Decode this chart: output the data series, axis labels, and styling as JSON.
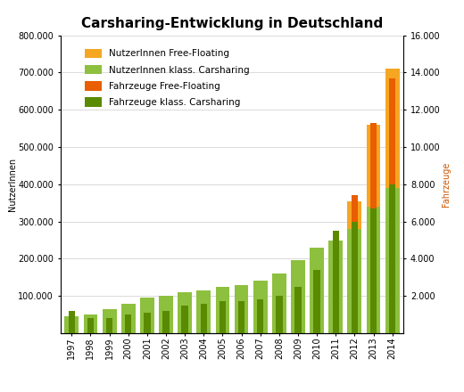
{
  "title": "Carsharing-Entwicklung in Deutschland",
  "years": [
    1997,
    1998,
    1999,
    2000,
    2001,
    2002,
    2003,
    2004,
    2005,
    2006,
    2007,
    2008,
    2009,
    2010,
    2011,
    2012,
    2013,
    2014
  ],
  "nutzer_klassisch": [
    46000,
    50000,
    65000,
    80000,
    95000,
    100000,
    110000,
    115000,
    125000,
    130000,
    140000,
    160000,
    195000,
    230000,
    250000,
    280000,
    340000,
    390000
  ],
  "nutzer_free_floating": [
    0,
    0,
    0,
    0,
    0,
    0,
    0,
    0,
    0,
    0,
    0,
    0,
    0,
    0,
    0,
    75000,
    220000,
    320000
  ],
  "fahrzeuge_klassisch": [
    1200,
    800,
    800,
    1000,
    1100,
    1200,
    1500,
    1600,
    1700,
    1700,
    1800,
    2000,
    2500,
    3400,
    5500,
    6000,
    6700,
    8000
  ],
  "fahrzeuge_free_floating": [
    0,
    0,
    0,
    0,
    0,
    0,
    0,
    0,
    0,
    0,
    0,
    0,
    0,
    0,
    0,
    1400,
    4600,
    5700
  ],
  "color_nutzer_klassisch": "#8dc03e",
  "color_nutzer_free_floating": "#f5a623",
  "color_fahrzeuge_klassisch": "#5a8a00",
  "color_fahrzeuge_free_floating": "#e85e00",
  "ylabel_left": "NutzerInnen",
  "ylabel_right": "Fahrzeuge",
  "ylim_left": [
    0,
    800000
  ],
  "ylim_right": [
    0,
    16000
  ],
  "background_color": "#ffffff",
  "legend_labels": [
    "NutzerInnen Free-Floating",
    "NutzerInnen klass. Carsharing",
    "Fahrzeuge Free-Floating",
    "Fahrzeuge klass. Carsharing"
  ],
  "legend_colors": [
    "#f5a623",
    "#8dc03e",
    "#e85e00",
    "#5a8a00"
  ],
  "yticks_left": [
    100000,
    200000,
    300000,
    400000,
    500000,
    600000,
    700000,
    800000
  ],
  "yticks_right": [
    2000,
    4000,
    6000,
    8000,
    10000,
    12000,
    14000,
    16000
  ]
}
